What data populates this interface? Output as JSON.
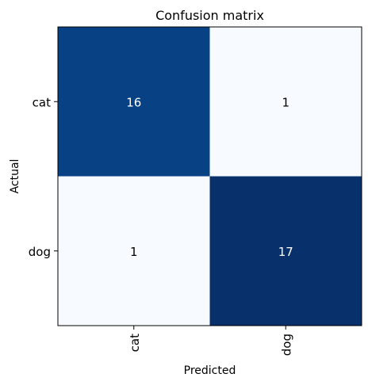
{
  "chart_data": {
    "type": "heatmap",
    "title": "Confusion matrix",
    "xlabel": "Predicted",
    "ylabel": "Actual",
    "x_categories": [
      "cat",
      "dog"
    ],
    "y_categories": [
      "cat",
      "dog"
    ],
    "values": [
      [
        16,
        1
      ],
      [
        1,
        17
      ]
    ],
    "colormap": "Blues",
    "color_range": [
      1,
      17
    ],
    "x_tick_rotation": 90,
    "grid": false
  }
}
